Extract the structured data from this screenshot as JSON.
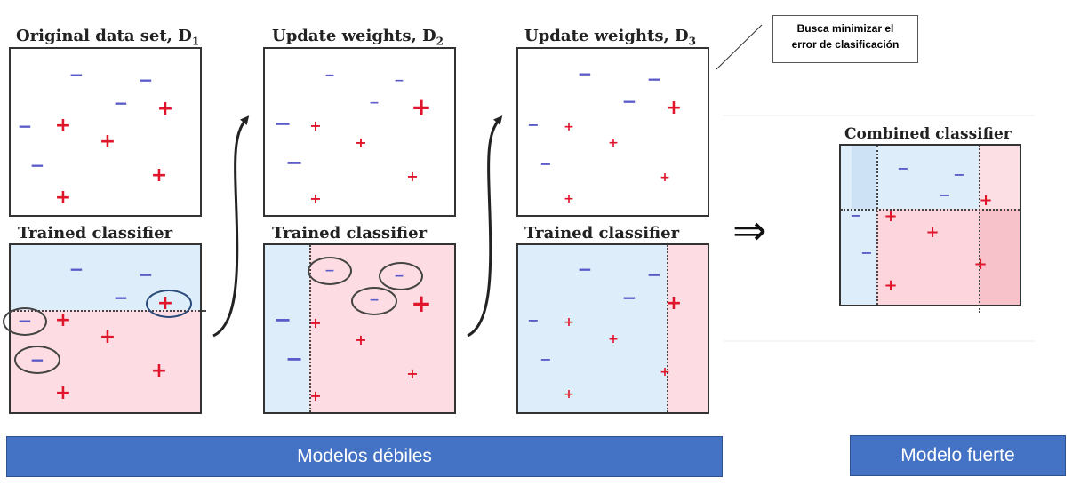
{
  "titles": {
    "d1": "Original data set,  D",
    "d1_sub": "1",
    "d2": "Update weights,  D",
    "d2_sub": "2",
    "d3": "Update weights,  D",
    "d3_sub": "3",
    "tc1": "Trained classifier",
    "tc2": "Trained classifier",
    "tc3": "Trained classifier",
    "combined": "Combined classifier"
  },
  "callout": {
    "line1": "Busca minimizar el",
    "line2": "error de clasificación"
  },
  "labels": {
    "weak": "Modelos débiles",
    "strong": "Modelo fuerte"
  },
  "symbols": {
    "plus": "+",
    "minus": "−",
    "implies": "⇒"
  },
  "colors": {
    "plus": "#e0142a",
    "minus": "#5a5ac8",
    "region_blue": "#ddeefa",
    "region_pink": "#fddde3",
    "label_bar": "#4472c4"
  }
}
